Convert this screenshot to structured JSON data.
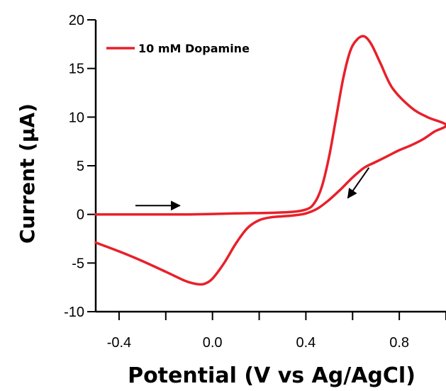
{
  "chart_data": {
    "type": "line",
    "xlabel": "Potential (V vs Ag/AgCl)",
    "ylabel": "Current (µA)",
    "xlim": [
      -0.5,
      1.0
    ],
    "ylim": [
      -10,
      20
    ],
    "x_ticks": [
      -0.4,
      0.0,
      0.4,
      0.8
    ],
    "x_tick_labels": [
      "-0.4",
      "0.0",
      "0.4",
      "0.8"
    ],
    "y_ticks": [
      -10,
      -5,
      0,
      5,
      10,
      15,
      20
    ],
    "y_tick_labels": [
      "-10",
      "-5",
      "0",
      "5",
      "10",
      "15",
      "20"
    ],
    "grid": false,
    "legend_position": "top-left",
    "color": "#e8202a",
    "series": [
      {
        "name": "10 mM Dopamine",
        "x": [
          -0.5,
          -0.3,
          -0.1,
          0.1,
          0.3,
          0.4,
          0.44,
          0.47,
          0.5,
          0.53,
          0.56,
          0.59,
          0.62,
          0.65,
          0.68,
          0.72,
          0.77,
          0.85,
          0.92,
          1.0,
          0.95,
          0.9,
          0.85,
          0.8,
          0.75,
          0.7,
          0.65,
          0.6,
          0.55,
          0.5,
          0.45,
          0.4,
          0.35,
          0.3,
          0.25,
          0.2,
          0.15,
          0.1,
          0.05,
          0.0,
          -0.03,
          -0.05,
          -0.08,
          -0.12,
          -0.2,
          -0.3,
          -0.4,
          -0.5
        ],
        "y": [
          0.0,
          0.0,
          0.0,
          0.1,
          0.2,
          0.5,
          1.3,
          3.0,
          6.0,
          10.0,
          14.0,
          16.8,
          18.0,
          18.3,
          17.5,
          15.5,
          13.0,
          11.0,
          10.0,
          9.2,
          8.5,
          7.7,
          7.1,
          6.6,
          6.0,
          5.4,
          4.8,
          3.8,
          2.6,
          1.5,
          0.6,
          0.1,
          -0.1,
          -0.2,
          -0.3,
          -0.6,
          -1.4,
          -3.0,
          -5.0,
          -6.6,
          -7.1,
          -7.2,
          -7.1,
          -6.8,
          -5.9,
          -4.8,
          -3.8,
          -2.9
        ]
      }
    ],
    "annotations": [
      {
        "type": "arrow",
        "direction": "right",
        "from": [
          -0.33,
          0.9
        ],
        "to": [
          -0.14,
          0.9
        ]
      },
      {
        "type": "arrow",
        "direction": "down-left",
        "from": [
          0.67,
          4.8
        ],
        "to": [
          0.58,
          1.7
        ]
      }
    ]
  }
}
